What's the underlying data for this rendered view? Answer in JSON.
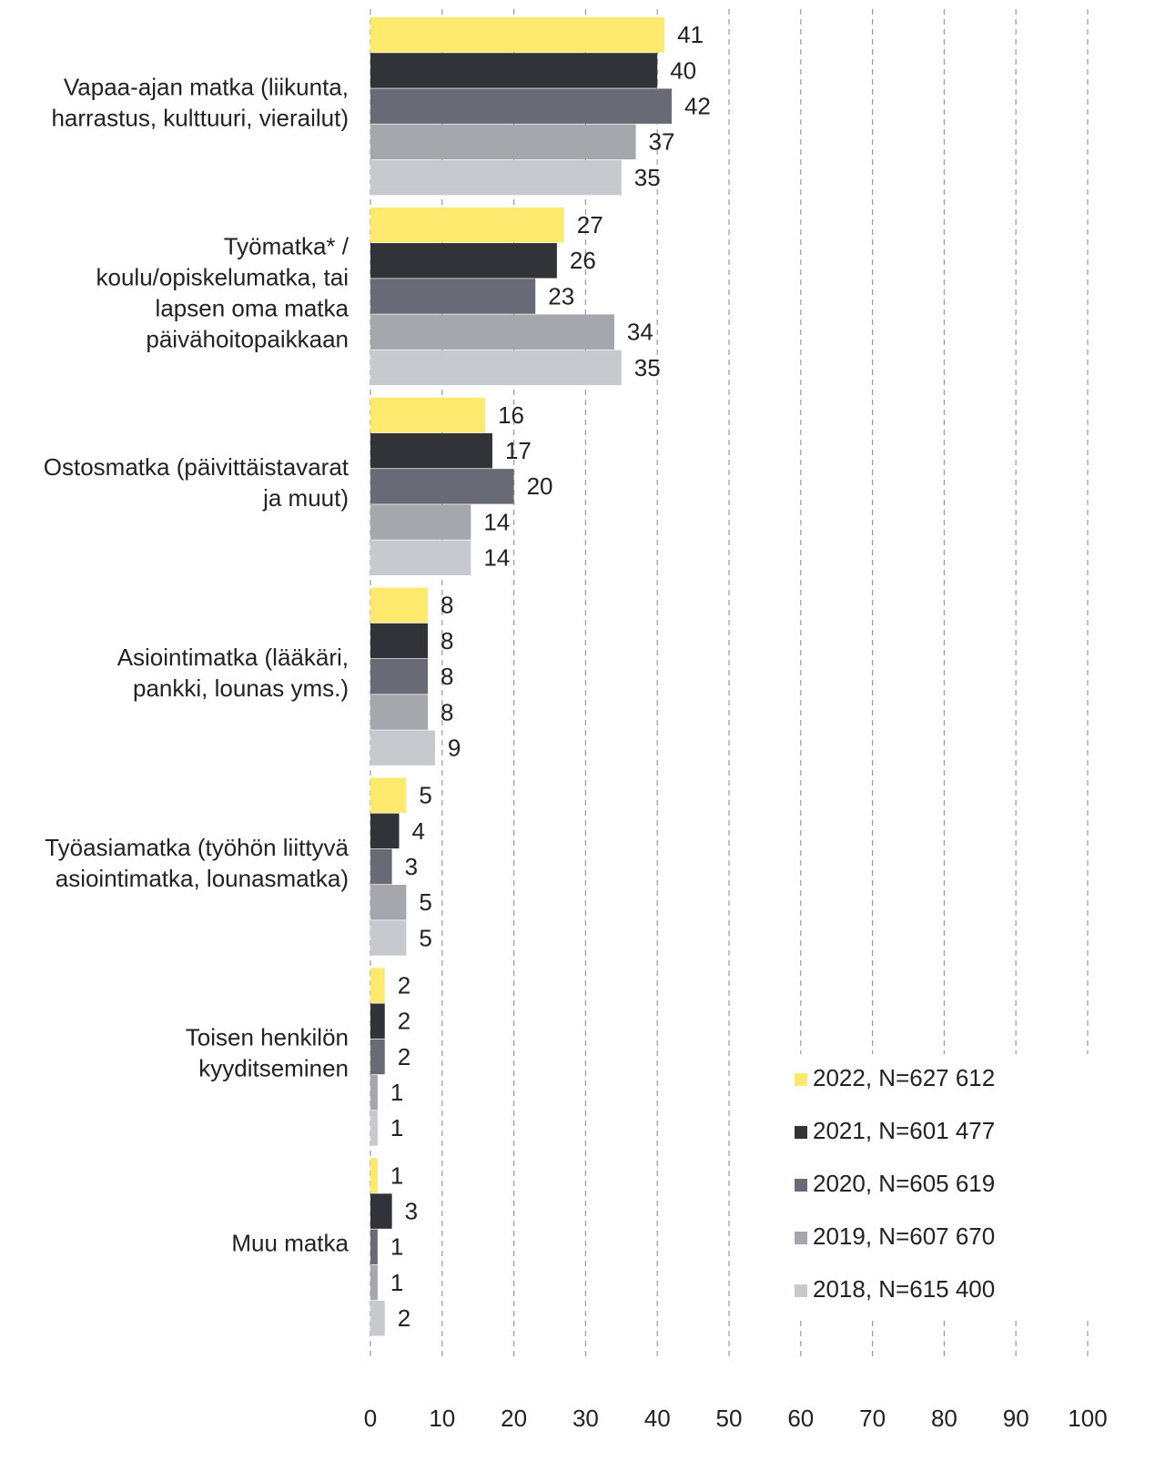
{
  "chart_data": {
    "type": "hbar",
    "categories": [
      "Vapaa-ajan matka  (liikunta,\nharrastus, kulttuuri, vierailut)",
      "Työmatka* /\nkoulu/opiskelumatka,  tai\nlapsen oma matka\npäivähoitopaikkaan",
      "Ostosmatka  (päivittäistavarat\nja muut)",
      "Asiointimatka  (lääkäri,\npankki, lounas yms.)",
      "Työasiamatka  (työhön liittyvä\nasiointimatka, lounasmatka)",
      "Toisen henkilön\nkyyditseminen",
      "Muu matka"
    ],
    "series": [
      {
        "name": "2022, N=627 612",
        "color": "#fde96e",
        "values": [
          41,
          27,
          16,
          8,
          5,
          2,
          1
        ]
      },
      {
        "name": "2021, N=601 477",
        "color": "#323338",
        "values": [
          40,
          26,
          17,
          8,
          4,
          2,
          3
        ]
      },
      {
        "name": "2020, N=605 619",
        "color": "#686a75",
        "values": [
          42,
          23,
          20,
          8,
          3,
          2,
          1
        ]
      },
      {
        "name": "2019, N=607 670",
        "color": "#a5a7ad",
        "values": [
          37,
          34,
          14,
          8,
          5,
          1,
          1
        ]
      },
      {
        "name": "2018, N=615 400",
        "color": "#c8c9ce",
        "values": [
          35,
          35,
          14,
          9,
          5,
          1,
          2
        ]
      }
    ],
    "xlim": [
      0,
      100
    ],
    "xticks": [
      0,
      10,
      20,
      30,
      40,
      50,
      60,
      70,
      80,
      90,
      100
    ],
    "grid": true,
    "legend": "lower right"
  }
}
